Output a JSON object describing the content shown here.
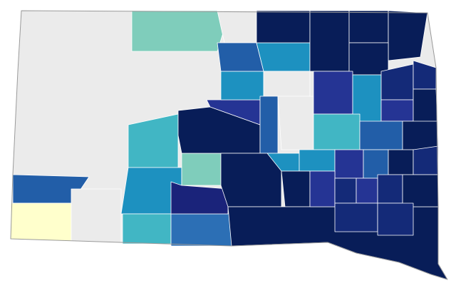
{
  "map": {
    "colors": [
      "#ebebeb",
      "#7fcdbb",
      "#ebebeb",
      "#225ea8",
      "#ffffcc",
      "#ebebeb",
      "#41b6c4",
      "#1d91c0",
      "#41b6c4",
      "#2c6fb5",
      "#1a237a",
      "#7fcdbb",
      "#081d58",
      "#253494",
      "#1d91c0",
      "#225ea8",
      "#1d91c0",
      "#081d58",
      "#081d58",
      "#081d58",
      "#081d58",
      "#081d58",
      "#ebebeb",
      "#225ea8",
      "#ebebeb",
      "#253494",
      "#1d91c0",
      "#142a78",
      "#142a78",
      "#253494",
      "#081d58",
      "#41b6c4",
      "#225ea8",
      "#081d58",
      "#1d91c0",
      "#1d91c0",
      "#253494",
      "#225ea8",
      "#081d58",
      "#142a78",
      "#081d58",
      "#081d58",
      "#081d58",
      "#253494",
      "#142a78",
      "#253494",
      "#142a78",
      "#081d58",
      "#142a78",
      "#142a78"
    ]
  }
}
